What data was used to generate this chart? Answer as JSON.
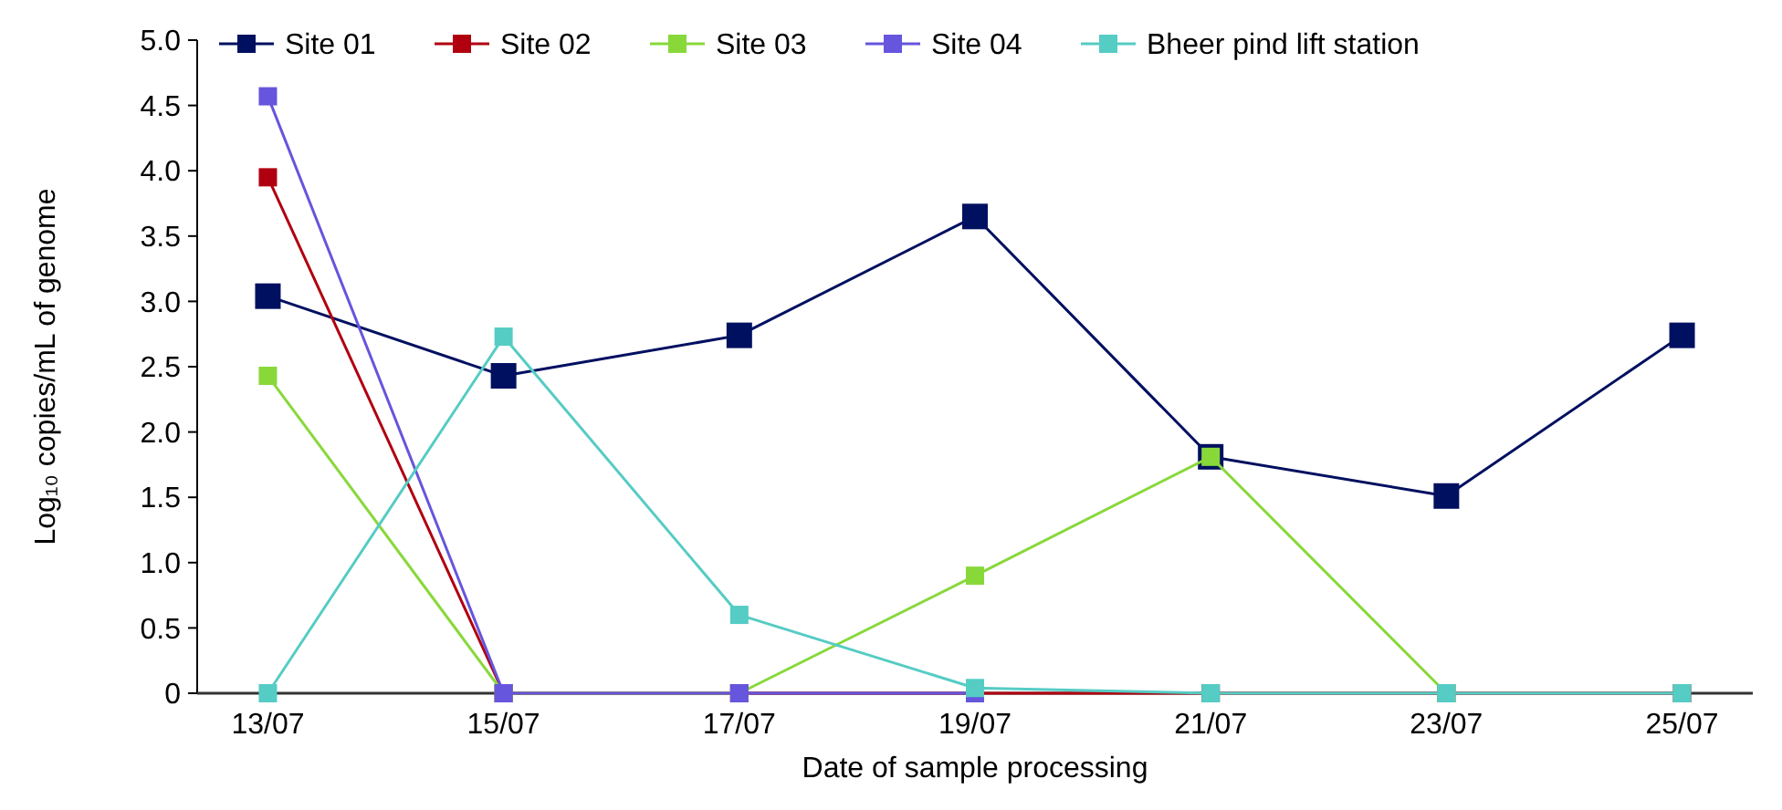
{
  "chart_data": {
    "type": "line",
    "xlabel": "Date of sample processing",
    "ylabel": "Log₁₀ copies/mL of genome",
    "categories": [
      "13/07",
      "15/07",
      "17/07",
      "19/07",
      "21/07",
      "23/07",
      "25/07"
    ],
    "series": [
      {
        "name": "Site 01",
        "color": "#001060",
        "values": [
          3.04,
          2.43,
          2.74,
          3.65,
          1.81,
          1.51,
          2.74
        ]
      },
      {
        "name": "Site 02",
        "color": "#b00010",
        "values": [
          3.95,
          0,
          0,
          0,
          0,
          0,
          0
        ]
      },
      {
        "name": "Site 03",
        "color": "#88d83a",
        "values": [
          2.43,
          0,
          0,
          0.9,
          1.81,
          0,
          null
        ]
      },
      {
        "name": "Site 04",
        "color": "#6655dd",
        "values": [
          4.57,
          0,
          0,
          0,
          null,
          null,
          null
        ]
      },
      {
        "name": "Bheer pind lift station",
        "color": "#55ccc4",
        "values": [
          0,
          2.73,
          0.6,
          0.04,
          0,
          0,
          0
        ]
      }
    ],
    "ylim": [
      0,
      5
    ],
    "yticks": [
      0,
      0.5,
      {
        "value": 1,
        "label": "1.0"
      },
      1.5,
      {
        "value": 2,
        "label": "2.0"
      },
      2.5,
      {
        "value": 3,
        "label": "3.0"
      },
      3.5,
      {
        "value": 4,
        "label": "4.0"
      },
      4.5,
      {
        "value": 5,
        "label": "5.0"
      }
    ],
    "marker": "square",
    "line_style": "solid",
    "legend": "top",
    "grid": false
  }
}
